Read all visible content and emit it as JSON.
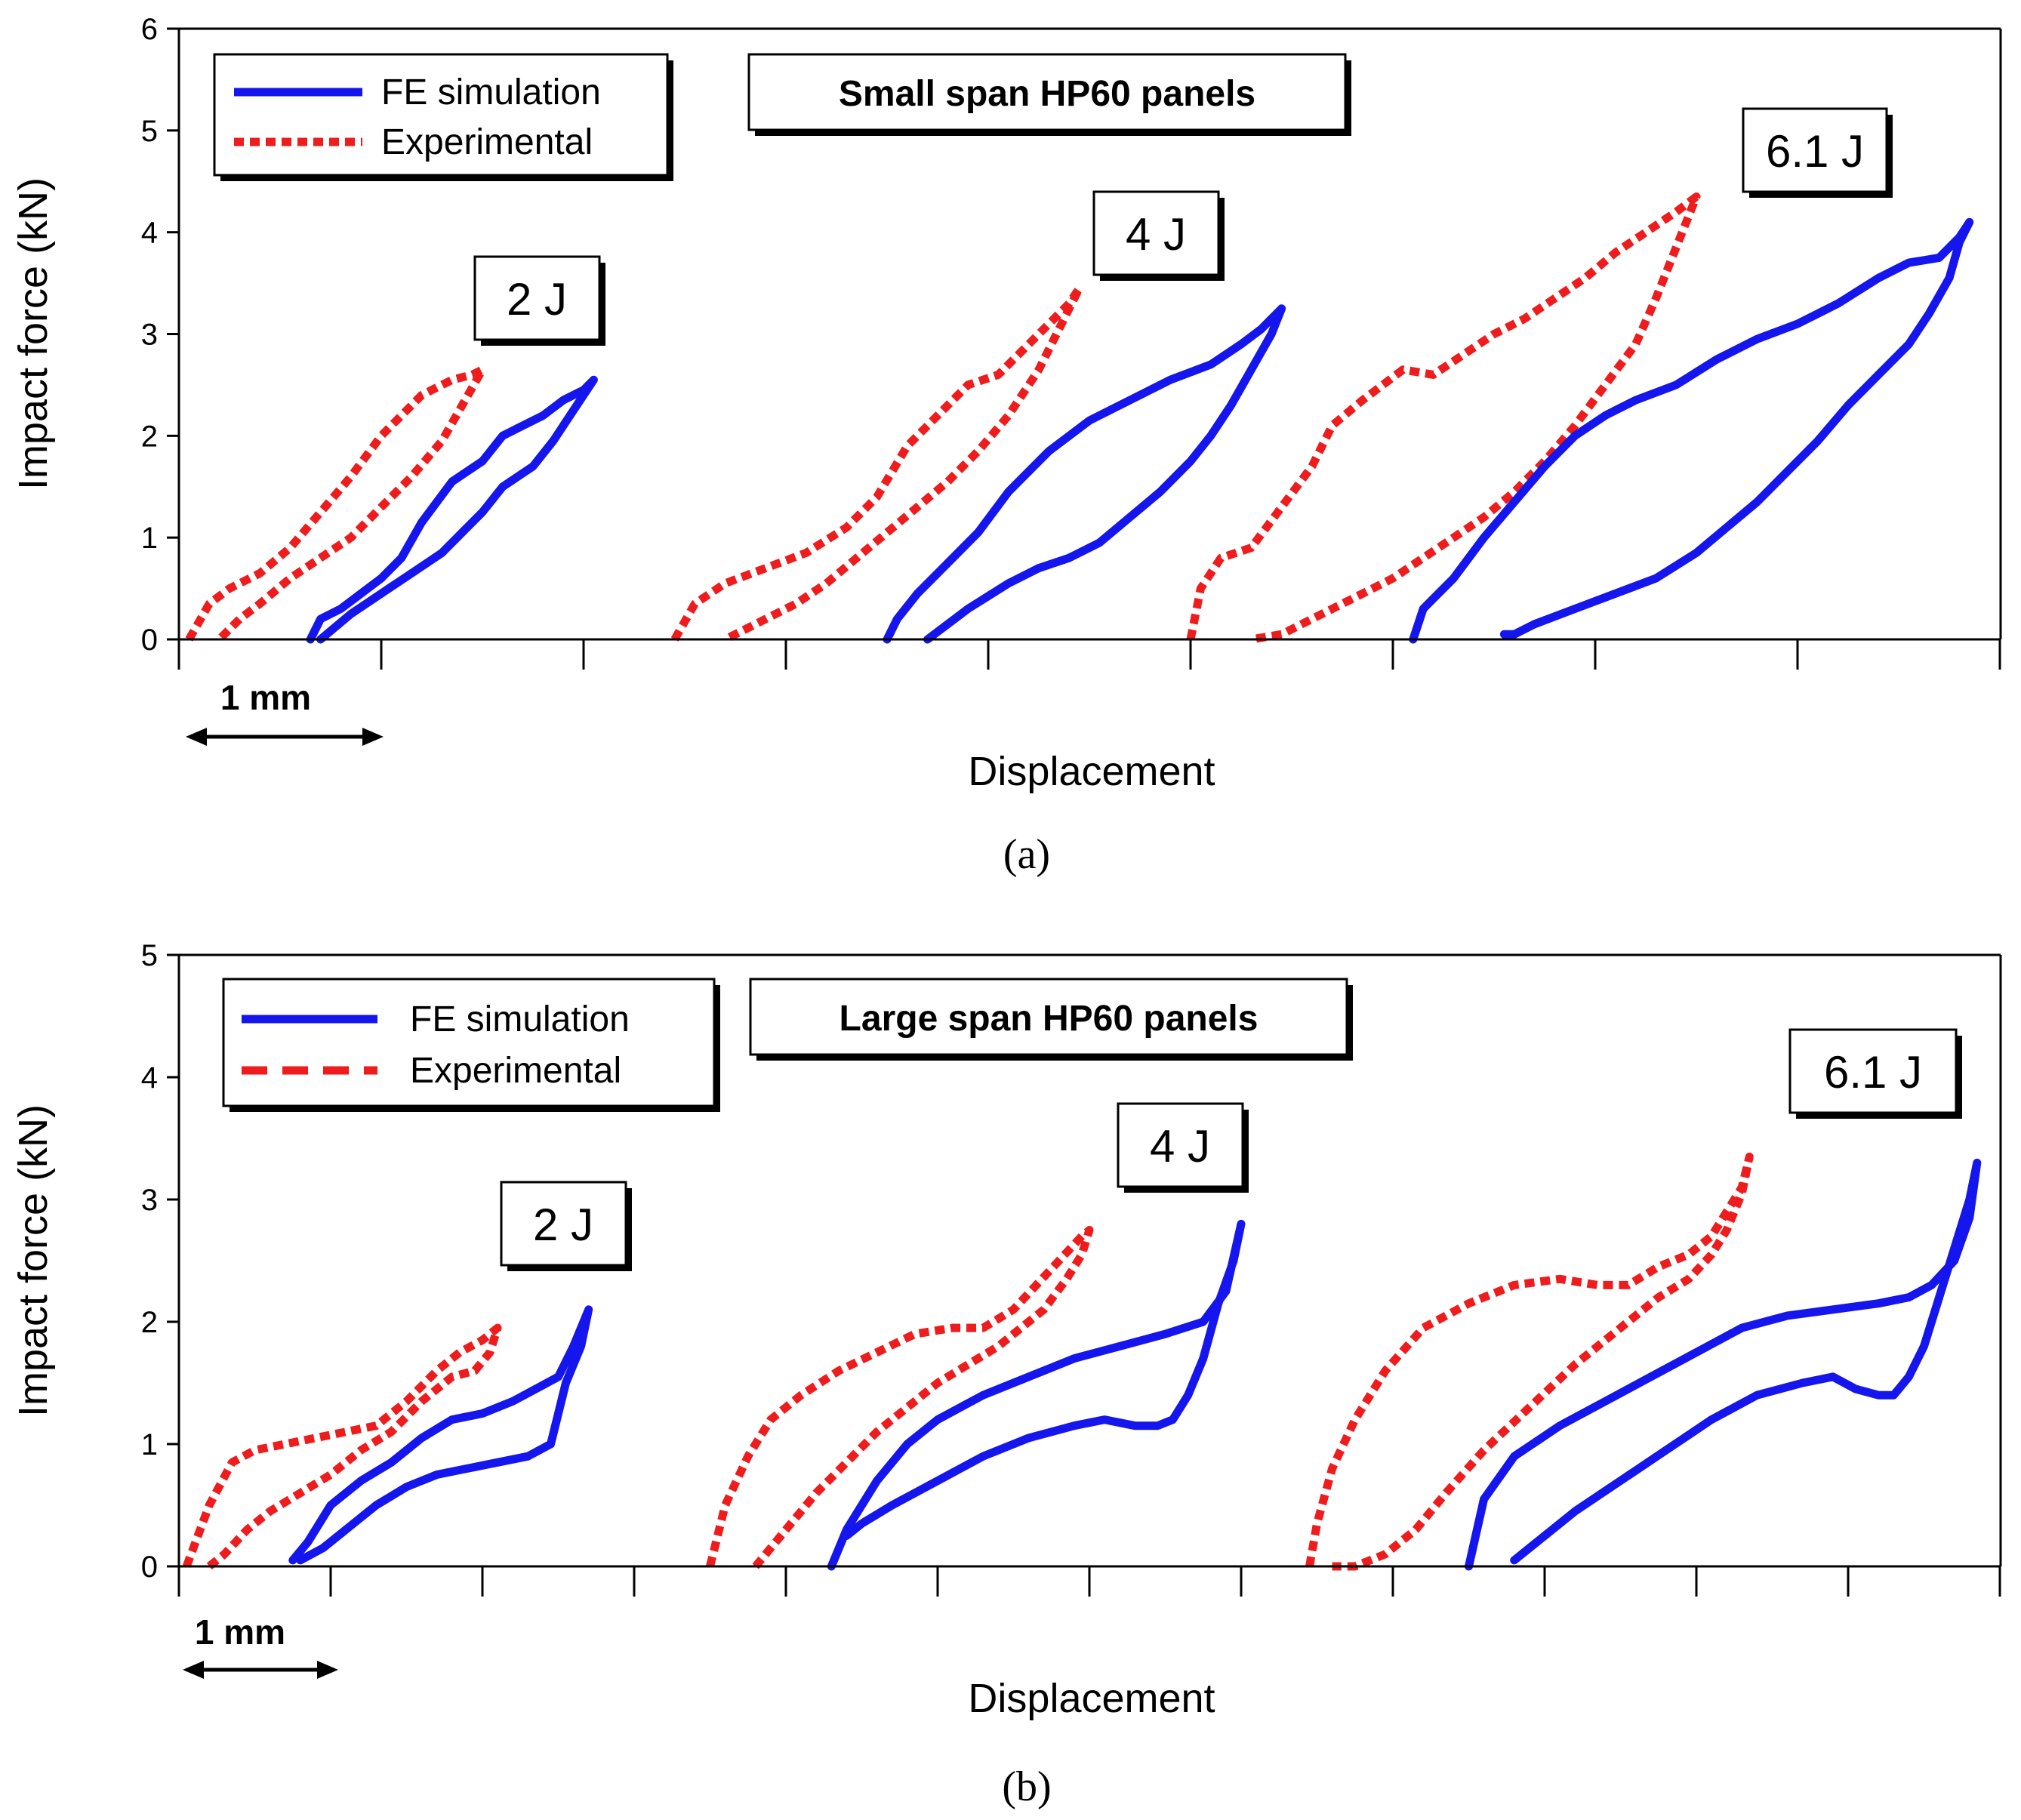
{
  "legend": {
    "fe_label": "FE simulation",
    "exp_label": "Experimental"
  },
  "colors": {
    "fe": "#1515ee",
    "experimental": "#ee1c1c"
  },
  "scale_bar_label": "1 mm",
  "chart_data": [
    {
      "type": "line",
      "panel": "(a)",
      "title": "Small span HP60 panels",
      "xlabel": "Displacement",
      "ylabel": "Impact force (kN)",
      "xlim": [
        0,
        9
      ],
      "ylim": [
        0,
        6
      ],
      "yticks": [
        "0",
        "1",
        "2",
        "3",
        "4",
        "5",
        "6"
      ],
      "x_unit_note": "1 mm per major tick",
      "annotations": [
        "2 J",
        "4 J",
        "6.1 J"
      ],
      "series": [
        {
          "name": "Experimental",
          "energy": "2 J",
          "x": [
            0.05,
            0.15,
            0.25,
            0.4,
            0.55,
            0.7,
            0.85,
            1.0,
            1.1,
            1.2,
            1.35,
            1.45,
            1.5,
            1.4,
            1.3,
            1.15,
            1.0,
            0.85,
            0.7,
            0.55,
            0.4,
            0.3,
            0.2
          ],
          "y": [
            0,
            0.35,
            0.5,
            0.65,
            0.9,
            1.25,
            1.6,
            2.0,
            2.2,
            2.4,
            2.55,
            2.6,
            2.65,
            2.3,
            1.95,
            1.6,
            1.3,
            1.0,
            0.8,
            0.6,
            0.35,
            0.2,
            0
          ]
        },
        {
          "name": "FE simulation",
          "energy": "2 J",
          "x": [
            0.65,
            0.7,
            0.8,
            0.9,
            1.0,
            1.1,
            1.2,
            1.35,
            1.5,
            1.6,
            1.7,
            1.8,
            1.9,
            2.0,
            2.05,
            1.95,
            1.85,
            1.75,
            1.6,
            1.5,
            1.4,
            1.3,
            1.15,
            1.0,
            0.85,
            0.7
          ],
          "y": [
            0,
            0.2,
            0.3,
            0.45,
            0.6,
            0.8,
            1.15,
            1.55,
            1.75,
            2.0,
            2.1,
            2.2,
            2.35,
            2.45,
            2.55,
            2.25,
            1.95,
            1.7,
            1.5,
            1.25,
            1.05,
            0.85,
            0.65,
            0.45,
            0.25,
            0
          ]
        },
        {
          "name": "Experimental",
          "energy": "4 J",
          "x": [
            2.45,
            2.55,
            2.7,
            2.9,
            3.1,
            3.3,
            3.45,
            3.6,
            3.75,
            3.9,
            4.05,
            4.2,
            4.3,
            4.4,
            4.45,
            4.35,
            4.25,
            4.1,
            3.95,
            3.8,
            3.65,
            3.5,
            3.35,
            3.2,
            3.05,
            2.9,
            2.7
          ],
          "y": [
            0,
            0.35,
            0.55,
            0.7,
            0.85,
            1.1,
            1.4,
            1.9,
            2.2,
            2.5,
            2.6,
            2.9,
            3.1,
            3.3,
            3.45,
            3.05,
            2.65,
            2.2,
            1.85,
            1.55,
            1.3,
            1.05,
            0.8,
            0.55,
            0.35,
            0.2,
            0
          ]
        },
        {
          "name": "FE simulation",
          "energy": "4 J",
          "x": [
            3.5,
            3.55,
            3.65,
            3.8,
            3.95,
            4.1,
            4.3,
            4.5,
            4.7,
            4.9,
            5.1,
            5.25,
            5.35,
            5.4,
            5.45,
            5.4,
            5.3,
            5.2,
            5.1,
            5.0,
            4.85,
            4.7,
            4.55,
            4.4,
            4.25,
            4.1,
            3.9,
            3.7
          ],
          "y": [
            0,
            0.2,
            0.45,
            0.75,
            1.05,
            1.45,
            1.85,
            2.15,
            2.35,
            2.55,
            2.7,
            2.9,
            3.05,
            3.15,
            3.25,
            3.0,
            2.65,
            2.3,
            2.0,
            1.75,
            1.45,
            1.2,
            0.95,
            0.8,
            0.7,
            0.55,
            0.3,
            0
          ]
        },
        {
          "name": "Experimental",
          "energy": "6.1 J",
          "x": [
            5.0,
            5.05,
            5.15,
            5.3,
            5.45,
            5.6,
            5.7,
            5.85,
            6.05,
            6.2,
            6.35,
            6.5,
            6.65,
            6.8,
            6.95,
            7.1,
            7.25,
            7.4,
            7.5,
            7.4,
            7.3,
            7.2,
            7.05,
            6.9,
            6.75,
            6.6,
            6.45,
            6.3,
            6.15,
            6.0,
            5.8,
            5.6,
            5.45,
            5.3
          ],
          "y": [
            0,
            0.5,
            0.8,
            0.9,
            1.3,
            1.7,
            2.1,
            2.35,
            2.65,
            2.6,
            2.8,
            3.0,
            3.15,
            3.35,
            3.55,
            3.8,
            4.0,
            4.2,
            4.35,
            3.85,
            3.35,
            2.9,
            2.5,
            2.1,
            1.75,
            1.45,
            1.2,
            1.0,
            0.8,
            0.6,
            0.4,
            0.2,
            0.05,
            0
          ]
        },
        {
          "name": "FE simulation",
          "energy": "6.1 J",
          "x": [
            6.1,
            6.15,
            6.3,
            6.45,
            6.6,
            6.75,
            6.9,
            7.05,
            7.2,
            7.4,
            7.6,
            7.8,
            8.0,
            8.2,
            8.4,
            8.55,
            8.7,
            8.8,
            8.85,
            8.8,
            8.75,
            8.65,
            8.55,
            8.4,
            8.25,
            8.1,
            7.95,
            7.8,
            7.65,
            7.5,
            7.3,
            7.1,
            6.9,
            6.7,
            6.6,
            6.55
          ],
          "y": [
            0,
            0.3,
            0.6,
            1.0,
            1.35,
            1.7,
            2.0,
            2.2,
            2.35,
            2.5,
            2.75,
            2.95,
            3.1,
            3.3,
            3.55,
            3.7,
            3.75,
            3.95,
            4.1,
            3.9,
            3.55,
            3.2,
            2.9,
            2.6,
            2.3,
            1.95,
            1.65,
            1.35,
            1.1,
            0.85,
            0.6,
            0.45,
            0.3,
            0.15,
            0.05,
            0.05
          ]
        }
      ]
    },
    {
      "type": "line",
      "panel": "(b)",
      "title": "Large span HP60 panels",
      "xlabel": "Displacement",
      "ylabel": "Impact force (kN)",
      "xlim": [
        0,
        12
      ],
      "ylim": [
        0,
        5
      ],
      "yticks": [
        "0",
        "1",
        "2",
        "3",
        "4",
        "5"
      ],
      "x_unit_note": "1 mm per major tick",
      "annotations": [
        "2 J",
        "4 J",
        "6.1 J"
      ],
      "series": [
        {
          "name": "Experimental",
          "energy": "2 J",
          "x": [
            0.05,
            0.2,
            0.35,
            0.5,
            0.7,
            0.9,
            1.1,
            1.3,
            1.5,
            1.7,
            1.85,
            2.0,
            2.1,
            2.05,
            1.95,
            1.8,
            1.6,
            1.4,
            1.2,
            1.0,
            0.8,
            0.6,
            0.45,
            0.3,
            0.2
          ],
          "y": [
            0,
            0.5,
            0.85,
            0.95,
            1.0,
            1.05,
            1.1,
            1.15,
            1.35,
            1.6,
            1.75,
            1.85,
            1.95,
            1.75,
            1.6,
            1.55,
            1.35,
            1.1,
            0.95,
            0.75,
            0.6,
            0.45,
            0.3,
            0.1,
            0
          ]
        },
        {
          "name": "FE simulation",
          "energy": "2 J",
          "x": [
            0.75,
            0.85,
            1.0,
            1.2,
            1.4,
            1.6,
            1.8,
            2.0,
            2.2,
            2.35,
            2.5,
            2.6,
            2.7,
            2.65,
            2.55,
            2.45,
            2.3,
            2.1,
            1.9,
            1.7,
            1.5,
            1.3,
            1.1,
            0.95,
            0.8
          ],
          "y": [
            0.05,
            0.2,
            0.5,
            0.7,
            0.85,
            1.05,
            1.2,
            1.25,
            1.35,
            1.45,
            1.55,
            1.8,
            2.1,
            1.8,
            1.5,
            1.0,
            0.9,
            0.85,
            0.8,
            0.75,
            0.65,
            0.5,
            0.3,
            0.15,
            0.05
          ]
        },
        {
          "name": "Experimental",
          "energy": "4 J",
          "x": [
            3.5,
            3.6,
            3.75,
            3.9,
            4.1,
            4.35,
            4.6,
            4.85,
            5.1,
            5.3,
            5.5,
            5.65,
            5.8,
            5.95,
            6.0,
            5.95,
            5.85,
            5.7,
            5.55,
            5.4,
            5.2,
            5.0,
            4.8,
            4.6,
            4.4,
            4.2,
            4.0,
            3.8
          ],
          "y": [
            0,
            0.5,
            0.9,
            1.2,
            1.4,
            1.6,
            1.75,
            1.9,
            1.95,
            1.95,
            2.1,
            2.3,
            2.5,
            2.7,
            2.75,
            2.55,
            2.35,
            2.1,
            1.95,
            1.8,
            1.65,
            1.5,
            1.3,
            1.1,
            0.85,
            0.6,
            0.3,
            0
          ]
        },
        {
          "name": "FE simulation",
          "energy": "4 J",
          "x": [
            4.3,
            4.4,
            4.6,
            4.8,
            5.0,
            5.3,
            5.6,
            5.9,
            6.2,
            6.5,
            6.75,
            6.9,
            7.0,
            6.95,
            6.85,
            6.75,
            6.65,
            6.55,
            6.45,
            6.3,
            6.1,
            5.9,
            5.6,
            5.3,
            5.0,
            4.7,
            4.5,
            4.4
          ],
          "y": [
            0,
            0.3,
            0.7,
            1.0,
            1.2,
            1.4,
            1.55,
            1.7,
            1.8,
            1.9,
            2.0,
            2.25,
            2.8,
            2.5,
            2.15,
            1.7,
            1.4,
            1.2,
            1.15,
            1.15,
            1.2,
            1.15,
            1.05,
            0.9,
            0.7,
            0.5,
            0.35,
            0.25
          ]
        },
        {
          "name": "Experimental",
          "energy": "6.1 J",
          "x": [
            7.45,
            7.5,
            7.6,
            7.75,
            7.95,
            8.2,
            8.5,
            8.8,
            9.1,
            9.35,
            9.55,
            9.75,
            9.95,
            10.1,
            10.2,
            10.3,
            10.35,
            10.3,
            10.2,
            10.1,
            9.95,
            9.75,
            9.5,
            9.2,
            8.9,
            8.6,
            8.35,
            8.15,
            7.95,
            7.75,
            7.6
          ],
          "y": [
            0,
            0.35,
            0.8,
            1.2,
            1.6,
            1.95,
            2.15,
            2.3,
            2.35,
            2.3,
            2.3,
            2.45,
            2.55,
            2.7,
            2.9,
            3.1,
            3.35,
            3.05,
            2.75,
            2.55,
            2.35,
            2.2,
            1.95,
            1.65,
            1.3,
            0.95,
            0.6,
            0.3,
            0.1,
            0,
            0
          ]
        },
        {
          "name": "FE simulation",
          "energy": "6.1 J",
          "x": [
            8.5,
            8.6,
            8.8,
            9.1,
            9.4,
            9.7,
            10.0,
            10.3,
            10.6,
            10.9,
            11.2,
            11.4,
            11.55,
            11.7,
            11.8,
            11.85,
            11.8,
            11.7,
            11.6,
            11.5,
            11.4,
            11.3,
            11.2,
            11.05,
            10.9,
            10.7,
            10.4,
            10.1,
            9.8,
            9.5,
            9.2,
            8.9,
            8.8
          ],
          "y": [
            0,
            0.55,
            0.9,
            1.15,
            1.35,
            1.55,
            1.75,
            1.95,
            2.05,
            2.1,
            2.15,
            2.2,
            2.3,
            2.5,
            2.85,
            3.3,
            3.0,
            2.6,
            2.2,
            1.8,
            1.55,
            1.4,
            1.4,
            1.45,
            1.55,
            1.5,
            1.4,
            1.2,
            0.95,
            0.7,
            0.45,
            0.15,
            0.05
          ]
        }
      ]
    }
  ]
}
